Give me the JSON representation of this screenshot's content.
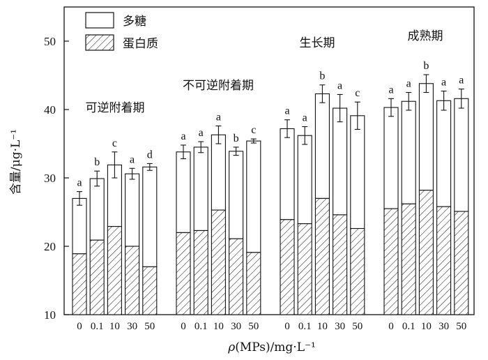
{
  "chart_data": {
    "type": "bar",
    "stacked": true,
    "ylabel": "含量/μg·L⁻¹",
    "xlabel": "ρ(MPs)/mg·L⁻¹",
    "ylim": [
      10,
      55
    ],
    "yticks": [
      10,
      20,
      30,
      40,
      50
    ],
    "grid": false,
    "legend_position": "top-left",
    "series": [
      {
        "name": "多糖",
        "fill": "none"
      },
      {
        "name": "蛋白质",
        "fill": "hatched"
      }
    ],
    "groups": [
      {
        "name": "可逆附着期",
        "categories": [
          "0",
          "0.1",
          "10",
          "30",
          "50"
        ],
        "total": [
          27.0,
          29.9,
          31.9,
          30.6,
          31.6
        ],
        "protein": [
          18.9,
          20.9,
          22.9,
          20.0,
          17.0
        ],
        "error": [
          1.0,
          1.1,
          1.9,
          0.8,
          0.5
        ],
        "letters": [
          "a",
          "b",
          "c",
          "a",
          "d"
        ]
      },
      {
        "name": "不可逆附着期",
        "categories": [
          "0",
          "0.1",
          "10",
          "30",
          "50"
        ],
        "total": [
          33.8,
          34.5,
          36.3,
          33.9,
          35.4
        ],
        "protein": [
          22.0,
          22.3,
          25.3,
          21.1,
          19.1
        ],
        "error": [
          1.0,
          0.8,
          1.3,
          0.6,
          0.3
        ],
        "letters": [
          "a",
          "a",
          "a",
          "b",
          "c"
        ]
      },
      {
        "name": "生长期",
        "categories": [
          "0",
          "0.1",
          "10",
          "30",
          "50"
        ],
        "total": [
          37.2,
          36.2,
          42.3,
          40.2,
          39.1
        ],
        "protein": [
          23.9,
          23.3,
          27.0,
          24.6,
          22.6
        ],
        "error": [
          1.3,
          1.3,
          1.3,
          2.0,
          2.0
        ],
        "letters": [
          "a",
          "a",
          "b",
          "a",
          "c"
        ]
      },
      {
        "name": "成熟期",
        "categories": [
          "0",
          "0.1",
          "10",
          "30",
          "50"
        ],
        "total": [
          40.3,
          41.2,
          43.8,
          41.3,
          41.6
        ],
        "protein": [
          25.5,
          26.2,
          28.2,
          25.8,
          25.1
        ],
        "error": [
          1.3,
          1.3,
          1.3,
          1.4,
          1.4
        ],
        "letters": [
          "a",
          "a",
          "b",
          "a",
          "a"
        ]
      }
    ]
  }
}
